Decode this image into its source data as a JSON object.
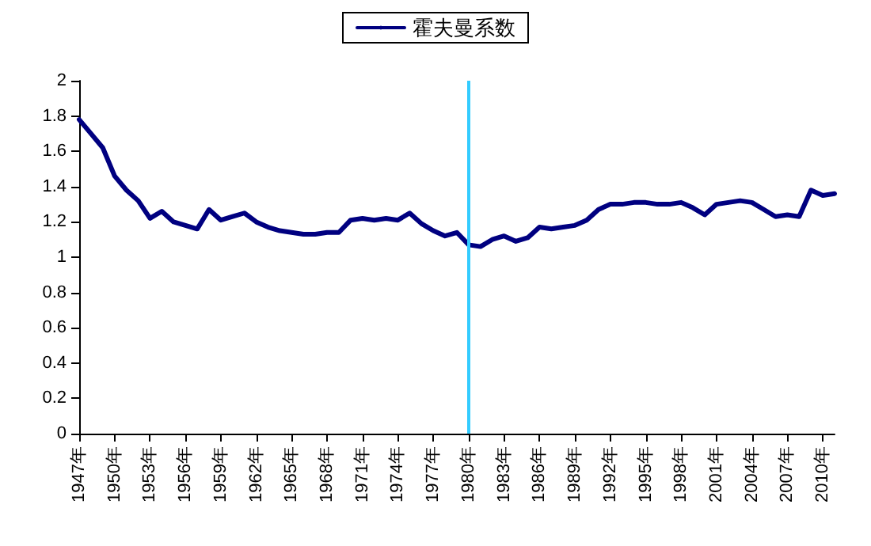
{
  "chart_data": {
    "type": "line",
    "categories": [
      "1947年",
      null,
      null,
      "1950年",
      null,
      null,
      "1953年",
      null,
      null,
      "1956年",
      null,
      null,
      "1959年",
      null,
      null,
      "1962年",
      null,
      null,
      "1965年",
      null,
      null,
      "1968年",
      null,
      null,
      "1971年",
      null,
      null,
      "1974年",
      null,
      null,
      "1977年",
      null,
      null,
      "1980年",
      null,
      null,
      "1983年",
      null,
      null,
      "1986年",
      null,
      null,
      "1989年",
      null,
      null,
      "1992年",
      null,
      null,
      "1995年",
      null,
      null,
      "1998年",
      null,
      null,
      "2001年",
      null,
      null,
      "2004年",
      null,
      null,
      "2007年",
      null,
      null,
      "2010年",
      null
    ],
    "series": [
      {
        "name": "霍夫曼系数",
        "color": "#000080",
        "values": [
          1.78,
          1.7,
          1.62,
          1.46,
          1.38,
          1.32,
          1.22,
          1.26,
          1.2,
          1.18,
          1.16,
          1.27,
          1.21,
          1.23,
          1.25,
          1.2,
          1.17,
          1.15,
          1.14,
          1.13,
          1.13,
          1.14,
          1.14,
          1.21,
          1.22,
          1.21,
          1.22,
          1.21,
          1.25,
          1.19,
          1.15,
          1.12,
          1.14,
          1.07,
          1.06,
          1.1,
          1.12,
          1.09,
          1.11,
          1.17,
          1.16,
          1.17,
          1.18,
          1.21,
          1.27,
          1.3,
          1.3,
          1.31,
          1.31,
          1.3,
          1.3,
          1.31,
          1.28,
          1.24,
          1.3,
          1.31,
          1.32,
          1.31,
          1.27,
          1.23,
          1.24,
          1.23,
          1.38,
          1.35,
          1.36
        ]
      }
    ],
    "ylim": [
      0,
      2
    ],
    "yticks": [
      0,
      0.2,
      0.4,
      0.6,
      0.8,
      1,
      1.2,
      1.4,
      1.6,
      1.8,
      2
    ],
    "ref_lines": [
      {
        "axis": "x",
        "value": "1980年",
        "color": "#33ccff"
      }
    ],
    "legend": "top",
    "grid": false,
    "marker": "none",
    "line_style": "solid"
  }
}
